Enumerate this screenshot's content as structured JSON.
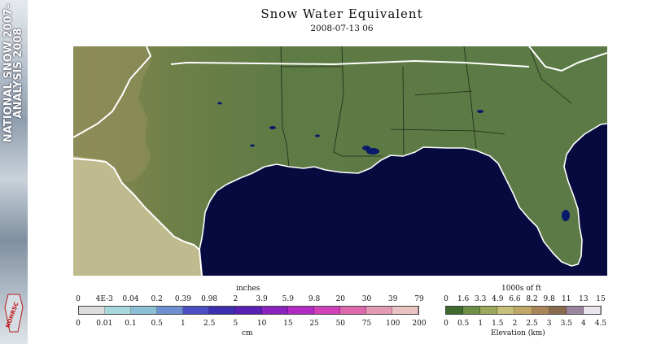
{
  "branding": {
    "side_title_line1": "NATIONAL SNOW",
    "side_title_line2": "ANALYSIS",
    "year_line1": "2007-",
    "year_line2": "2008",
    "logo_text": "NOHRSC"
  },
  "map": {
    "title": "Snow Water Equivalent",
    "datetime": "2008-07-13 06",
    "colors": {
      "ocean": "#070a3f",
      "land_low": "#5e7a45",
      "land_high": "#8c8a55",
      "mexico": "#c0bb8e",
      "boundary": "#ffffff"
    }
  },
  "swe_legend": {
    "top_unit": "inches",
    "inches": [
      "0",
      "4E-3",
      "0.04",
      "0.2",
      "0.39",
      "0.98",
      "2",
      "3.9",
      "5.9",
      "9.8",
      "20",
      "30",
      "39",
      "79"
    ],
    "cm": [
      "0",
      "0.01",
      "0.1",
      "0.5",
      "1",
      "2.5",
      "5",
      "10",
      "15",
      "25",
      "50",
      "75",
      "100",
      "200"
    ],
    "bottom_unit": "cm",
    "colors": [
      "#dcdcdc",
      "#a9d8dc",
      "#8cc0d6",
      "#6e8fd0",
      "#4b4fc2",
      "#3c2fb0",
      "#5a1fb4",
      "#8a22c0",
      "#b22ac4",
      "#d041b8",
      "#dc6aab",
      "#e29ab5",
      "#e9c2c2"
    ]
  },
  "elev_legend": {
    "top_unit": "1000s of ft",
    "feet": [
      "0",
      "1.6",
      "3.3",
      "4.9",
      "6.6",
      "8.2",
      "9.8",
      "11",
      "13",
      "15"
    ],
    "km": [
      "0",
      "0.5",
      "1",
      "1.5",
      "2",
      "2.5",
      "3",
      "3.5",
      "4",
      "4.5"
    ],
    "bottom_unit": "Elevation (km)",
    "colors": [
      "#3f6a2d",
      "#6f8f45",
      "#9aa95c",
      "#c7c07a",
      "#c2a866",
      "#a9875a",
      "#8a6a4e",
      "#9b86a0",
      "#e9e4ee"
    ]
  }
}
